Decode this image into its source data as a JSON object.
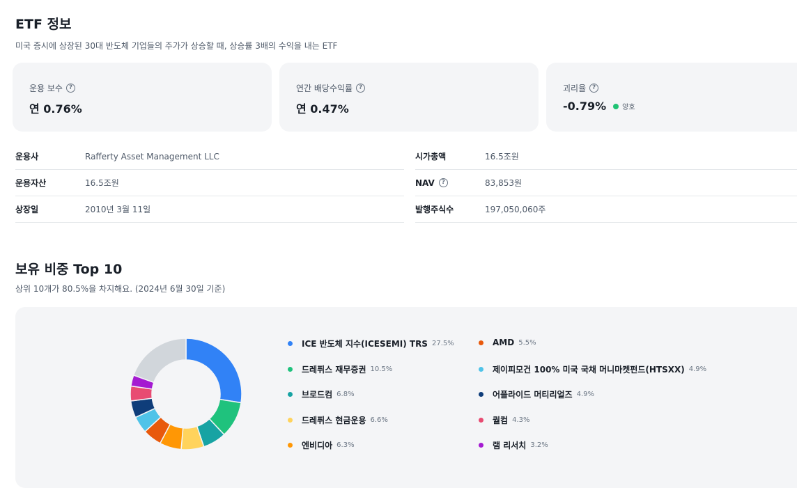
{
  "etf_info": {
    "title": "ETF 정보",
    "description": "미국 증시에 상장된 30대 반도체 기업들의 주가가 상승할 때, 상승률 3배의 수익을 내는 ETF",
    "cards": [
      {
        "label": "운용 보수",
        "value": "연 0.76%"
      },
      {
        "label": "연간 배당수익률",
        "value": "연 0.47%"
      },
      {
        "label": "괴리율",
        "value": "-0.79%",
        "badge": "양호",
        "badge_color": "#20c374"
      }
    ],
    "left_rows": [
      {
        "key": "운용사",
        "value": "Rafferty Asset Management LLC"
      },
      {
        "key": "운용자산",
        "value": "16.5조원"
      },
      {
        "key": "상장일",
        "value": "2010년 3월 11일"
      }
    ],
    "right_rows": [
      {
        "key": "시가총액",
        "value": "16.5조원"
      },
      {
        "key": "NAV",
        "value": "83,853원"
      },
      {
        "key": "발행주식수",
        "value": "197,050,060주"
      }
    ]
  },
  "holdings": {
    "title": "보유 비중 Top 10",
    "subtitle": "상위 10개가 80.5%을 차지해요. (2024년 6월 30일 기준)",
    "items": [
      {
        "name": "ICE 반도체 지수(ICESEMI) TRS",
        "pct_label": "27.5%",
        "value": 27.5,
        "color": "#3182f6"
      },
      {
        "name": "드레퓌스 재무증권",
        "pct_label": "10.5%",
        "value": 10.5,
        "color": "#1fc27d"
      },
      {
        "name": "브로드컴",
        "pct_label": "6.8%",
        "value": 6.8,
        "color": "#17a3a3"
      },
      {
        "name": "드레퓌스 현금운용",
        "pct_label": "6.6%",
        "value": 6.6,
        "color": "#ffd35c"
      },
      {
        "name": "엔비디아",
        "pct_label": "6.3%",
        "value": 6.3,
        "color": "#ff9705"
      },
      {
        "name": "AMD",
        "pct_label": "5.5%",
        "value": 5.5,
        "color": "#e8590c"
      },
      {
        "name": "제이피모건 100% 미국 국채 머니마켓펀드(HTSXX)",
        "pct_label": "4.9%",
        "value": 4.9,
        "color": "#4fc3e8"
      },
      {
        "name": "어플라이드 머티리얼즈",
        "pct_label": "4.9%",
        "value": 4.9,
        "color": "#0f3d7a"
      },
      {
        "name": "퀄컴",
        "pct_label": "4.3%",
        "value": 4.3,
        "color": "#e84b72"
      },
      {
        "name": "램 리서치",
        "pct_label": "3.2%",
        "value": 3.2,
        "color": "#a41ad1"
      }
    ],
    "others_value": 19.5,
    "others_color": "#d1d6db"
  }
}
